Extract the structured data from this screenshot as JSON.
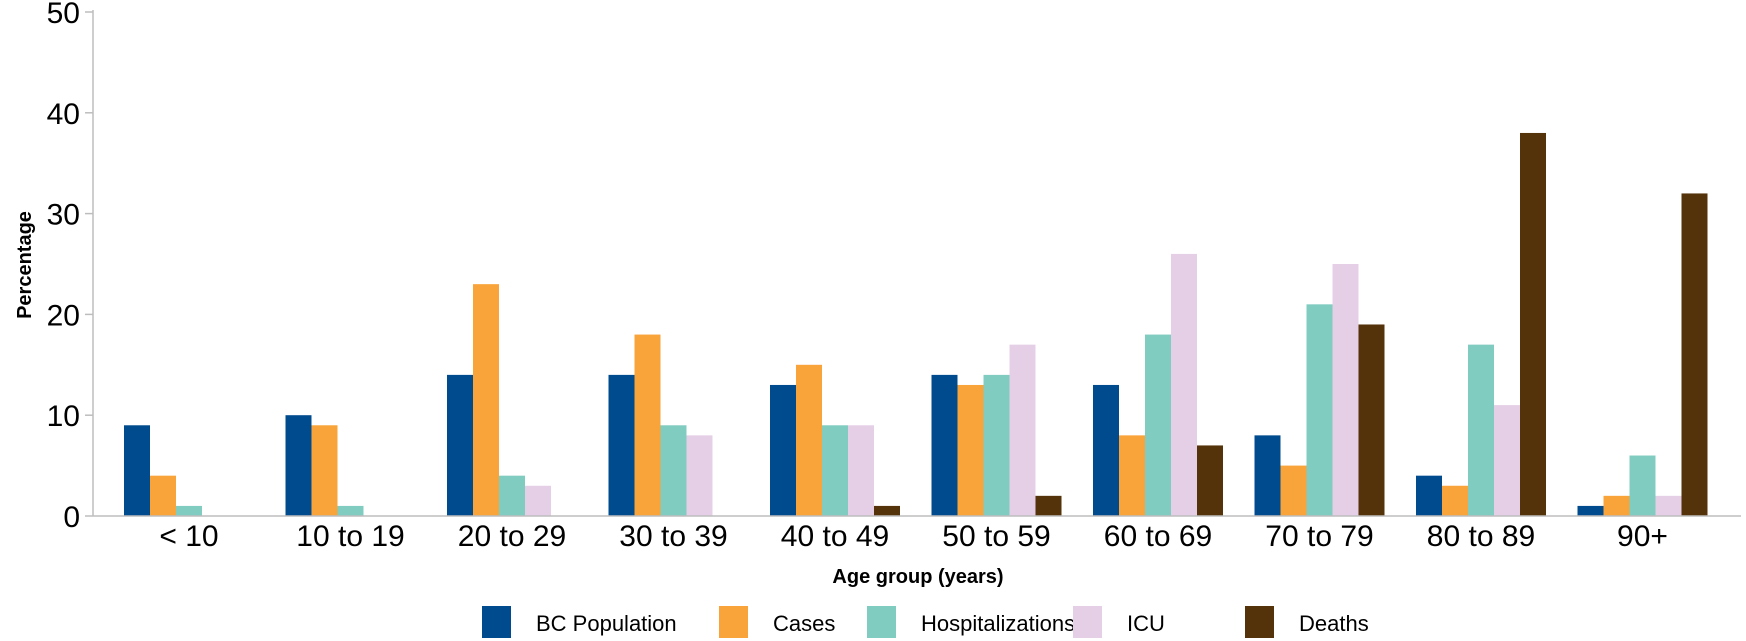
{
  "chart_data": {
    "type": "bar",
    "title": "",
    "xlabel": "Age group (years)",
    "ylabel": "Percentage",
    "ylim": [
      0,
      50
    ],
    "yticks": [
      "0",
      "10",
      "20",
      "30",
      "40",
      "50"
    ],
    "grid": false,
    "legend_position": "bottom",
    "categories": [
      "< 10",
      "10 to 19",
      "20 to 29",
      "30 to 39",
      "40 to 49",
      "50 to 59",
      "60 to 69",
      "70 to 79",
      "80 to 89",
      "90+"
    ],
    "series": [
      {
        "name": "BC Population",
        "color": "#004B8D",
        "values": [
          9,
          10,
          14,
          14,
          13,
          14,
          13,
          8,
          4,
          1
        ]
      },
      {
        "name": "Cases",
        "color": "#F9A43A",
        "values": [
          4,
          9,
          23,
          18,
          15,
          13,
          8,
          5,
          3,
          2
        ]
      },
      {
        "name": "Hospitalizations",
        "color": "#80CCC0",
        "values": [
          1,
          1,
          4,
          9,
          9,
          14,
          18,
          21,
          17,
          6
        ]
      },
      {
        "name": "ICU",
        "color": "#E4CFE6",
        "values": [
          0,
          0,
          3,
          8,
          9,
          17,
          26,
          25,
          11,
          2
        ]
      },
      {
        "name": "Deaths",
        "color": "#54320A",
        "values": [
          0,
          0,
          0,
          0,
          1,
          2,
          7,
          19,
          38,
          32
        ]
      }
    ]
  }
}
